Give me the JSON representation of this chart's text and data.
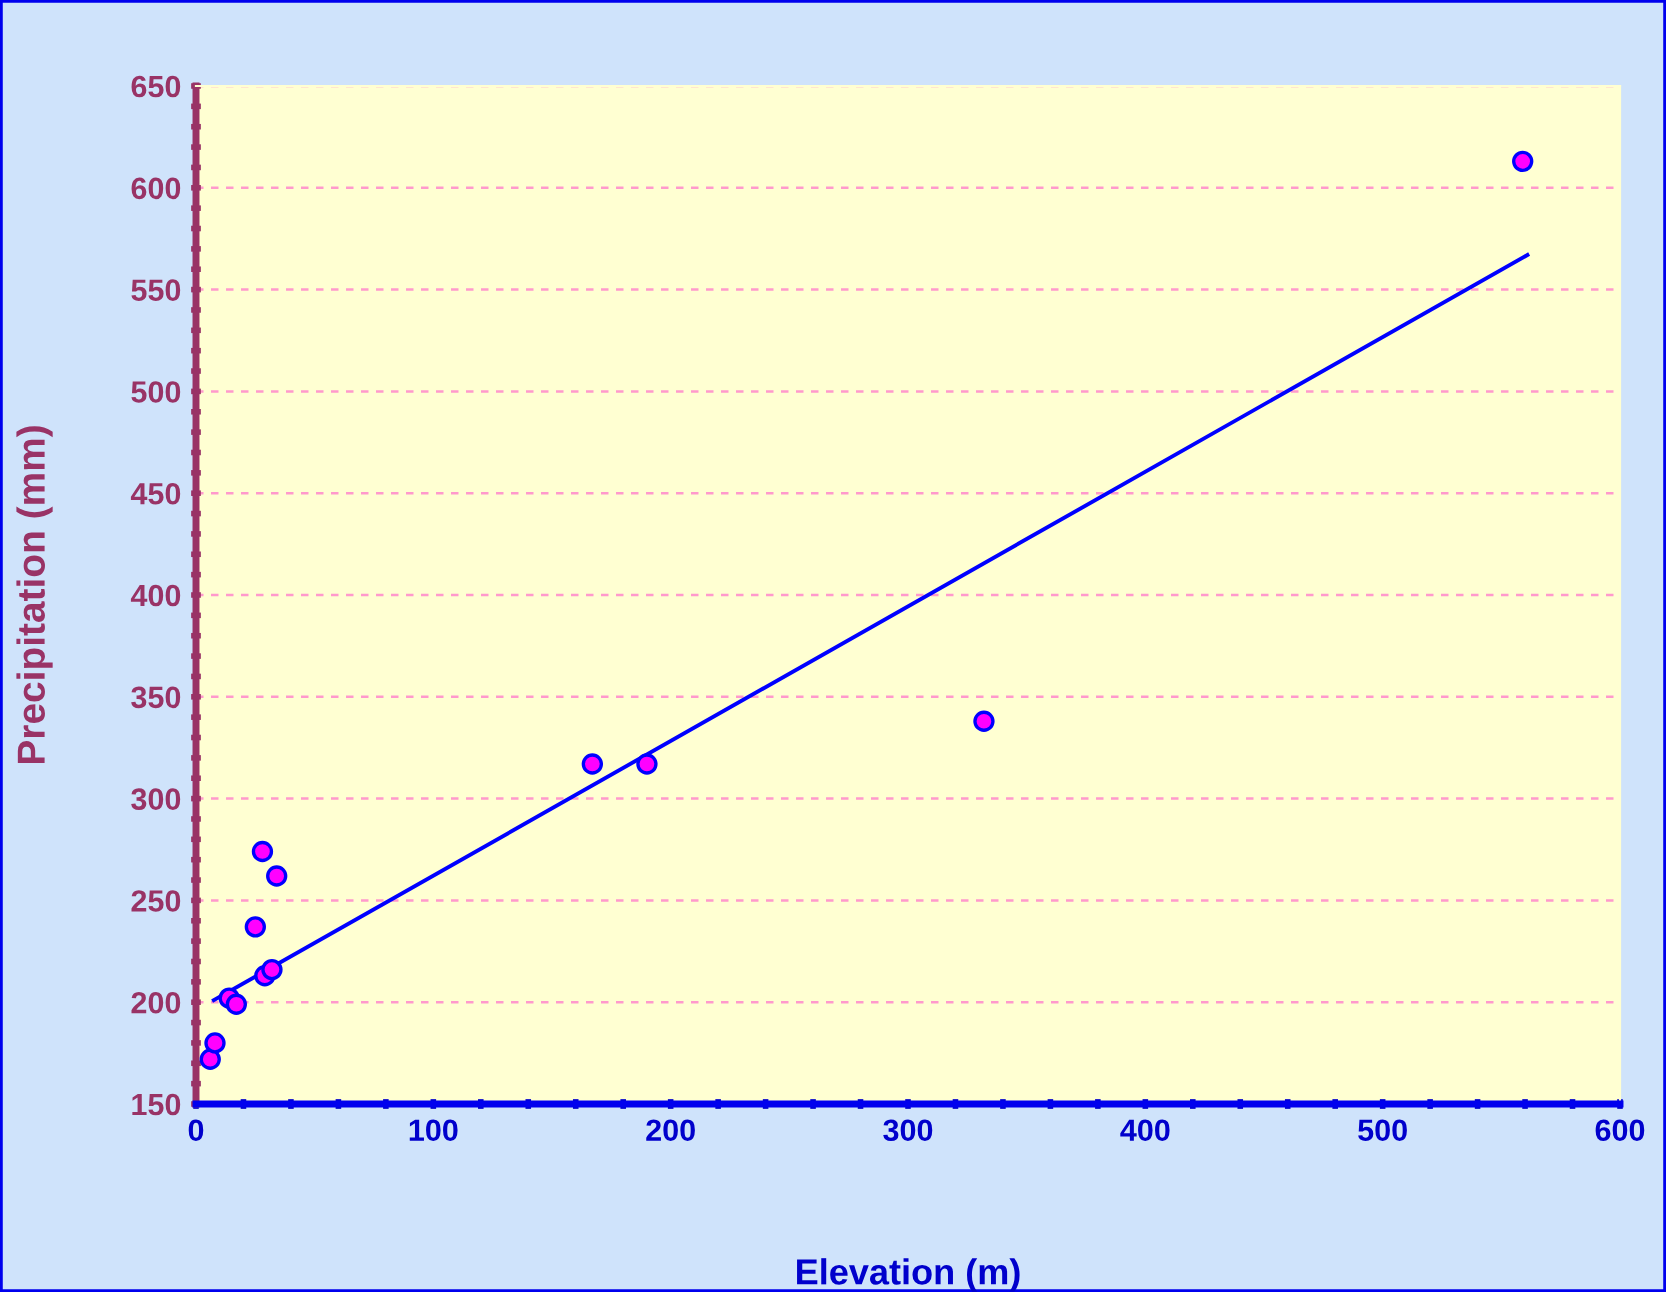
{
  "chart_data": {
    "type": "scatter",
    "xlabel": "Elevation (m)",
    "ylabel": "Precipitation (mm)",
    "xlim": [
      0,
      600
    ],
    "ylim": [
      150,
      650
    ],
    "xticks": [
      0,
      {
        "value": 20,
        "label": null
      },
      {
        "value": 40,
        "label": null
      },
      {
        "value": 60,
        "label": null
      },
      {
        "value": 80,
        "label": null
      },
      100,
      {
        "value": 120,
        "label": null
      },
      {
        "value": 140,
        "label": null
      },
      {
        "value": 160,
        "label": null
      },
      {
        "value": 180,
        "label": null
      },
      200,
      {
        "value": 220,
        "label": null
      },
      {
        "value": 240,
        "label": null
      },
      {
        "value": 260,
        "label": null
      },
      {
        "value": 280,
        "label": null
      },
      300,
      {
        "value": 320,
        "label": null
      },
      {
        "value": 340,
        "label": null
      },
      {
        "value": 360,
        "label": null
      },
      {
        "value": 380,
        "label": null
      },
      400,
      {
        "value": 420,
        "label": null
      },
      {
        "value": 440,
        "label": null
      },
      {
        "value": 460,
        "label": null
      },
      {
        "value": 480,
        "label": null
      },
      500,
      {
        "value": 520,
        "label": null
      },
      {
        "value": 540,
        "label": null
      },
      {
        "value": 560,
        "label": null
      },
      {
        "value": 580,
        "label": null
      },
      600
    ],
    "yticks": [
      150,
      {
        "value": 160,
        "label": null
      },
      {
        "value": 170,
        "label": null
      },
      {
        "value": 180,
        "label": null
      },
      {
        "value": 190,
        "label": null
      },
      200,
      {
        "value": 210,
        "label": null
      },
      {
        "value": 220,
        "label": null
      },
      {
        "value": 230,
        "label": null
      },
      {
        "value": 240,
        "label": null
      },
      250,
      {
        "value": 260,
        "label": null
      },
      {
        "value": 270,
        "label": null
      },
      {
        "value": 280,
        "label": null
      },
      {
        "value": 290,
        "label": null
      },
      300,
      {
        "value": 310,
        "label": null
      },
      {
        "value": 320,
        "label": null
      },
      {
        "value": 330,
        "label": null
      },
      {
        "value": 340,
        "label": null
      },
      350,
      {
        "value": 360,
        "label": null
      },
      {
        "value": 370,
        "label": null
      },
      {
        "value": 380,
        "label": null
      },
      {
        "value": 390,
        "label": null
      },
      400,
      {
        "value": 410,
        "label": null
      },
      {
        "value": 420,
        "label": null
      },
      {
        "value": 430,
        "label": null
      },
      {
        "value": 440,
        "label": null
      },
      450,
      {
        "value": 460,
        "label": null
      },
      {
        "value": 470,
        "label": null
      },
      {
        "value": 480,
        "label": null
      },
      {
        "value": 490,
        "label": null
      },
      500,
      {
        "value": 510,
        "label": null
      },
      {
        "value": 520,
        "label": null
      },
      {
        "value": 530,
        "label": null
      },
      {
        "value": 540,
        "label": null
      },
      550,
      {
        "value": 560,
        "label": null
      },
      {
        "value": 570,
        "label": null
      },
      {
        "value": 580,
        "label": null
      },
      {
        "value": 590,
        "label": null
      },
      600,
      {
        "value": 610,
        "label": null
      },
      {
        "value": 620,
        "label": null
      },
      {
        "value": 630,
        "label": null
      },
      {
        "value": 640,
        "label": null
      },
      650
    ],
    "grid": "y",
    "legend": false,
    "series": [
      {
        "color": "#ff00ff",
        "marker": "circle",
        "x": [
          6,
          8,
          14,
          17,
          25,
          28,
          29,
          32,
          34,
          167,
          190,
          332,
          559
        ],
        "values": [
          172,
          180,
          202,
          199,
          237,
          274,
          213,
          216,
          262,
          317,
          317,
          338,
          613
        ]
      },
      {
        "type": "line",
        "color": "#0000ff",
        "line_style": "solid",
        "marker": "none",
        "x": [
          7.5,
          561
        ],
        "values": [
          201,
          567
        ]
      }
    ]
  }
}
